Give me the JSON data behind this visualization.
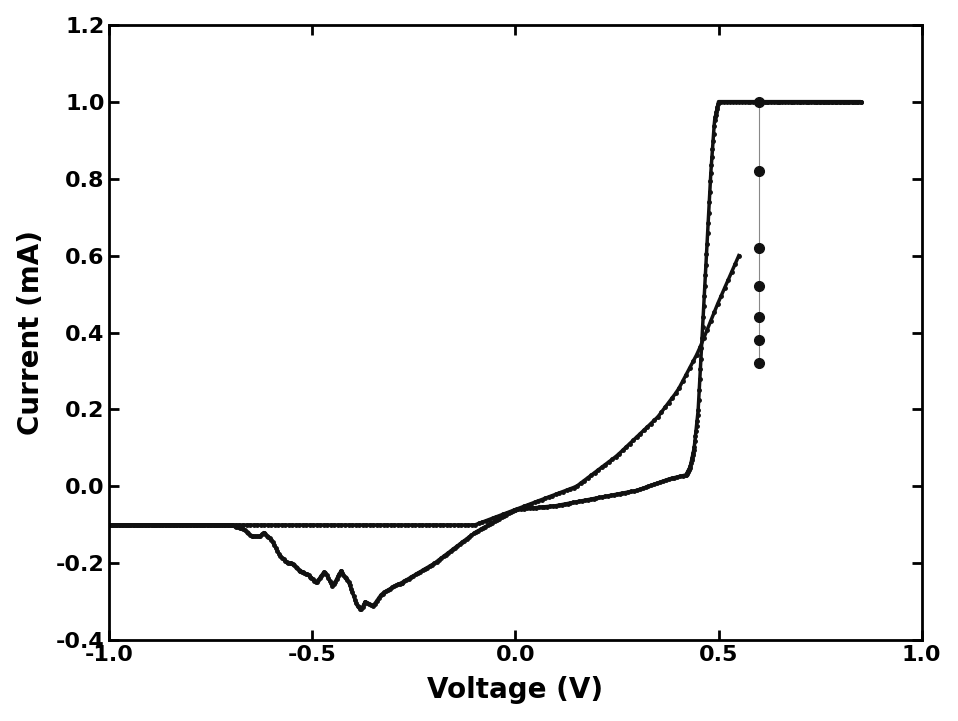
{
  "title": "",
  "xlabel": "Voltage (V)",
  "ylabel": "Current (mA)",
  "xlim": [
    -1.0,
    1.0
  ],
  "ylim": [
    -0.4,
    1.2
  ],
  "xticks": [
    -1.0,
    -0.5,
    0.0,
    0.5,
    1.0
  ],
  "yticks": [
    -0.4,
    -0.2,
    0.0,
    0.2,
    0.4,
    0.6,
    0.8,
    1.0,
    1.2
  ],
  "background_color": "#ffffff",
  "line_color": "#111111",
  "figsize": [
    9.58,
    7.21
  ],
  "dpi": 100
}
